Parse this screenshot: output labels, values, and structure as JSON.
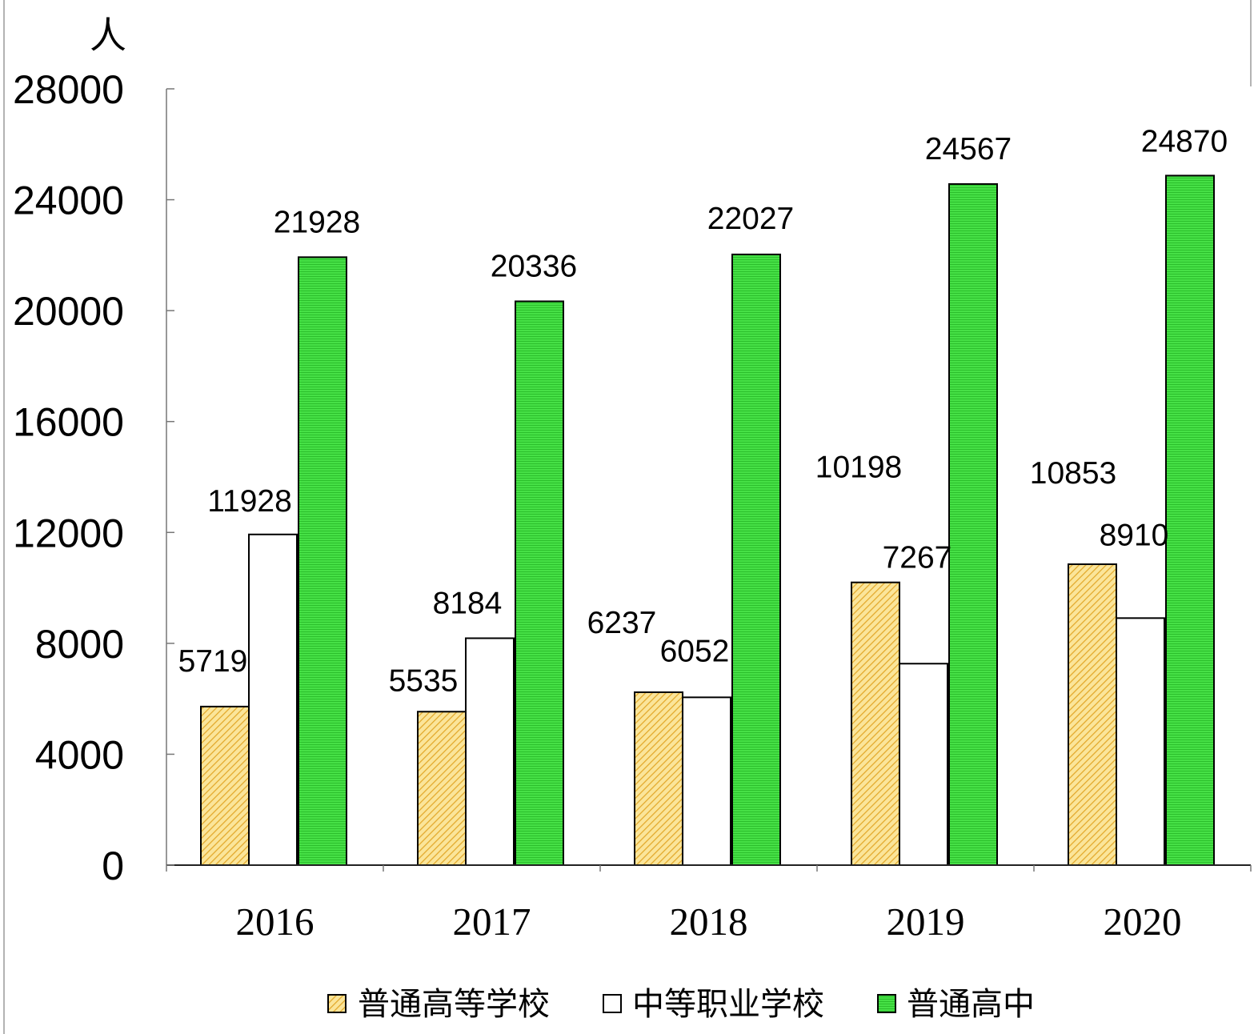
{
  "chart_data": {
    "type": "bar",
    "categories": [
      "2016",
      "2017",
      "2018",
      "2019",
      "2020"
    ],
    "series": [
      {
        "name": "普通高等学校",
        "values": [
          5719,
          5535,
          6237,
          10198,
          10853
        ],
        "color": "#fbe59a",
        "hatch_color": "#e2a82a"
      },
      {
        "name": "中等职业学校",
        "values": [
          11928,
          8184,
          6052,
          7267,
          8910
        ],
        "color": "#ffffff"
      },
      {
        "name": "普通高中",
        "values": [
          21928,
          20336,
          22027,
          24567,
          24870
        ],
        "color": "#46e046",
        "stripe_color": "#2cbf2c"
      }
    ],
    "ylabel": "人",
    "ylim": [
      0,
      28000
    ],
    "yticks": [
      0,
      4000,
      8000,
      12000,
      16000,
      20000,
      24000,
      28000
    ],
    "grid": false,
    "legend": "bottom"
  }
}
